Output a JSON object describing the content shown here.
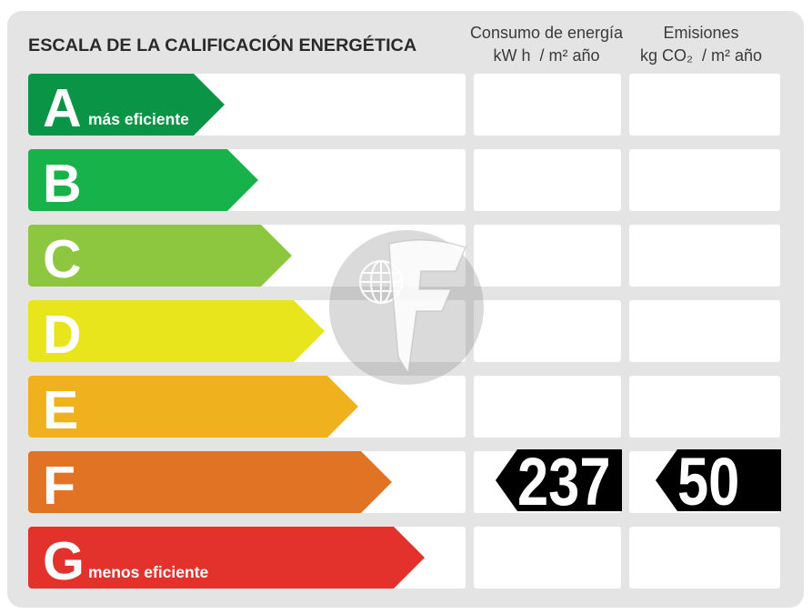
{
  "title": "ESCALA DE LA CALIFICACIÓN ENERGÉTICA",
  "columns": {
    "consumption": {
      "label": "Consumo de energía",
      "unit": "kW h  / m² año"
    },
    "emissions": {
      "label": "Emisiones",
      "unit": "kg CO₂  / m² año"
    }
  },
  "ratings": [
    {
      "letter": "A",
      "note": "más eficiente",
      "color": "#0a9446"
    },
    {
      "letter": "B",
      "color": "#18b24b"
    },
    {
      "letter": "C",
      "color": "#8dc63f"
    },
    {
      "letter": "D",
      "color": "#e9e51c"
    },
    {
      "letter": "E",
      "color": "#efb21e"
    },
    {
      "letter": "F",
      "color": "#e17324",
      "consumption": 237,
      "emissions": 50
    },
    {
      "letter": "G",
      "note": "menos eficiente",
      "color": "#e3322c"
    }
  ]
}
